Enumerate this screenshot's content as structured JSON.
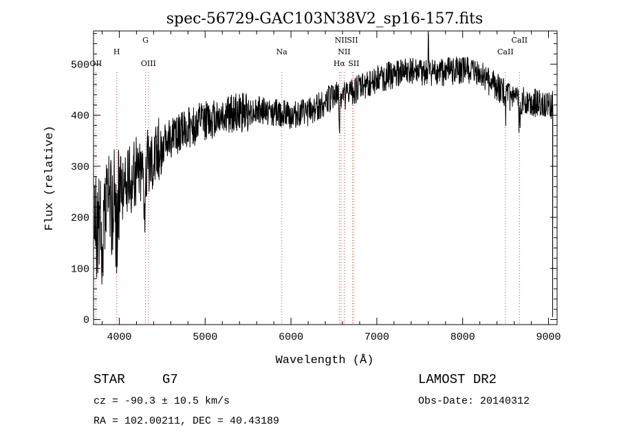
{
  "chart_data": {
    "type": "line",
    "title": "spec-56729-GAC103N38V2_sp16-157.fits",
    "xlabel": "Wavelength (Å)",
    "ylabel": "Flux (relative)",
    "xlim": [
      3700,
      9100
    ],
    "ylim": [
      -10,
      565
    ],
    "x_ticks": [
      4000,
      5000,
      6000,
      7000,
      8000,
      9000
    ],
    "x_tick_labels": [
      "4000",
      "5000",
      "6000",
      "7000",
      "8000",
      "9000"
    ],
    "y_ticks": [
      0,
      100,
      200,
      300,
      400,
      500
    ],
    "y_tick_labels": [
      "0",
      "100",
      "200",
      "300",
      "400",
      "500"
    ],
    "grid": false,
    "line_color": "#000000",
    "marker_line_color": "#cc3333",
    "series": [
      {
        "x": [
          3700,
          3750,
          3800,
          3850,
          3900,
          3950,
          4000,
          4100,
          4200,
          4300,
          4400,
          4500,
          4600,
          4700,
          4800,
          4900,
          5000,
          5200,
          5400,
          5600,
          5800,
          6000,
          6200,
          6400,
          6500,
          6600,
          6700,
          6800,
          7000,
          7200,
          7400,
          7600,
          7800,
          8000,
          8200,
          8400,
          8600,
          8800,
          9000
        ],
        "y": [
          160,
          180,
          200,
          215,
          225,
          240,
          250,
          270,
          290,
          310,
          325,
          340,
          355,
          365,
          375,
          382,
          390,
          400,
          405,
          410,
          405,
          400,
          405,
          425,
          440,
          435,
          445,
          455,
          470,
          480,
          485,
          480,
          485,
          490,
          480,
          455,
          430,
          425,
          420
        ]
      }
    ],
    "features": [
      {
        "x": 3612,
        "y": -30,
        "amp": 0,
        "w": 1
      },
      {
        "x": 3727,
        "y": 0,
        "amp": 0,
        "w": 1
      },
      {
        "x": 3800,
        "y": 10,
        "amp": -150,
        "w": 15
      },
      {
        "x": 3970,
        "y": 40,
        "amp": -60,
        "w": 15
      },
      {
        "x": 4300,
        "y": 0,
        "amp": -80,
        "w": 15
      },
      {
        "x": 6563,
        "y": 0,
        "amp": -70,
        "w": 5
      },
      {
        "x": 7600,
        "y": 0,
        "amp": 80,
        "w": 4
      }
    ],
    "lines": [
      {
        "x": 3727,
        "label": "OII",
        "level": 3
      },
      {
        "x": 3970,
        "label": "H",
        "level": 2
      },
      {
        "x": 4305,
        "label": "G",
        "level": 1
      },
      {
        "x": 4340,
        "label": "OIII",
        "level": 3
      },
      {
        "x": 5893,
        "label": "Na",
        "level": 2
      },
      {
        "x": 6563,
        "label": "Hα",
        "level": 3
      },
      {
        "x": 6583,
        "label": "NII",
        "level": 1
      },
      {
        "x": 6620,
        "label": "NII",
        "level": 2
      },
      {
        "x": 6716,
        "label": "SII",
        "level": 1
      },
      {
        "x": 6731,
        "label": "SII",
        "level": 3
      },
      {
        "x": 8498,
        "label": "CaII",
        "level": 2
      },
      {
        "x": 8662,
        "label": "CaII",
        "level": 1
      }
    ]
  },
  "footer": {
    "object_type": "STAR",
    "subclass": "G7",
    "survey": "LAMOST DR2",
    "cz": "cz = -90.3 ± 10.5 km/s",
    "obs_date": "Obs-Date: 20140312",
    "coords": "RA = 102.00211, DEC =  40.43189"
  }
}
